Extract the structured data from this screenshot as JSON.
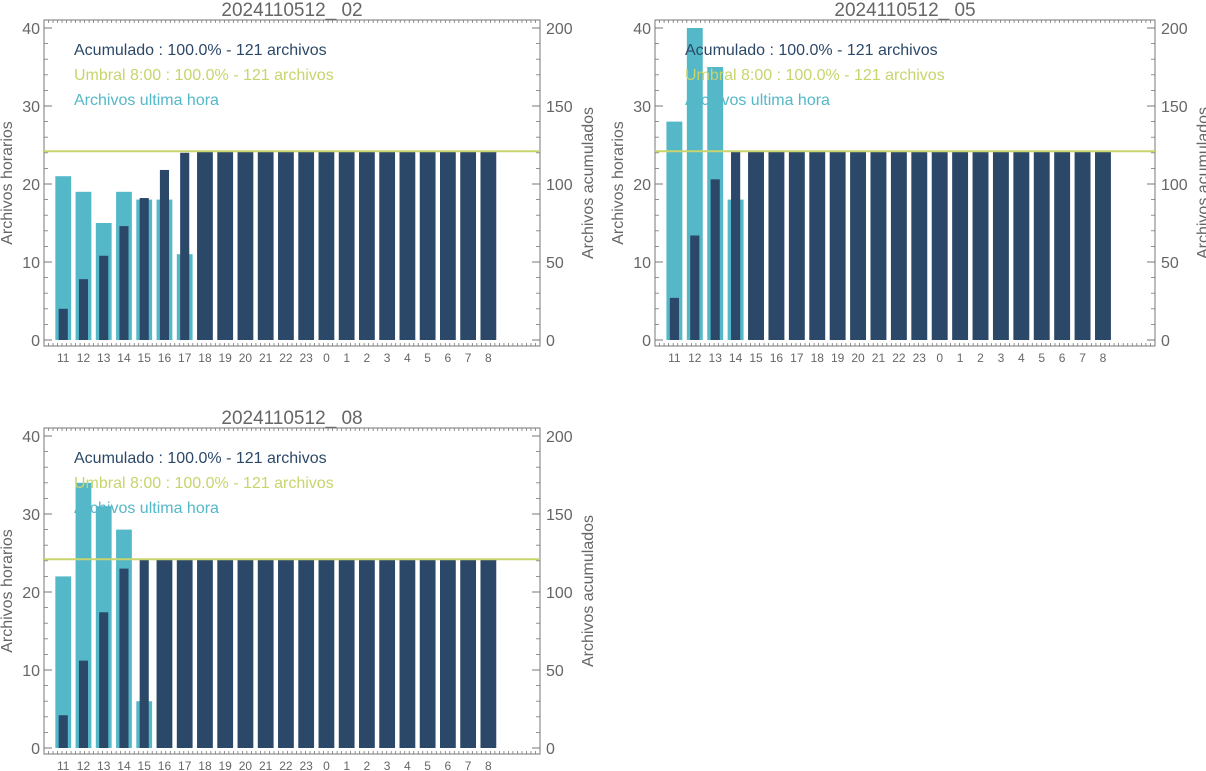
{
  "colors": {
    "hourly": "#54b8c8",
    "cumulative": "#2c4868",
    "threshold": "#c8d46c",
    "axis": "#777777",
    "text": "#666666"
  },
  "chart_data": [
    {
      "type": "bar",
      "title": "2024110512_ 02",
      "categories": [
        "11",
        "12",
        "13",
        "14",
        "15",
        "16",
        "17",
        "18",
        "19",
        "20",
        "21",
        "22",
        "23",
        "0",
        "1",
        "2",
        "3",
        "4",
        "5",
        "6",
        "7",
        "8"
      ],
      "ylabel": "Archivos horarios",
      "y2label": "Archivos acumulados",
      "ylim": [
        0,
        40
      ],
      "y2lim": [
        0,
        200
      ],
      "yticks": [
        "0",
        "10",
        "20",
        "30",
        "40"
      ],
      "y2ticks": [
        "0",
        "50",
        "100",
        "150",
        "200"
      ],
      "legend": [
        "Acumulado : 100.0% - 121 archivos",
        "Umbral 8:00 : 100.0% - 121 archivos",
        "Archivos ultima hora"
      ],
      "threshold": 121,
      "series": [
        {
          "name": "Archivos ultima hora",
          "axis": "left",
          "values": [
            21,
            19,
            15,
            19,
            18,
            18,
            11,
            null,
            null,
            null,
            null,
            null,
            null,
            null,
            null,
            null,
            null,
            null,
            null,
            null,
            null,
            null
          ]
        },
        {
          "name": "Acumulado",
          "axis": "right",
          "values": [
            20,
            39,
            54,
            73,
            91,
            109,
            120,
            121,
            121,
            121,
            121,
            121,
            121,
            121,
            121,
            121,
            121,
            121,
            121,
            121,
            121,
            121
          ]
        }
      ]
    },
    {
      "type": "bar",
      "title": "2024110512_ 05",
      "categories": [
        "11",
        "12",
        "13",
        "14",
        "15",
        "16",
        "17",
        "18",
        "19",
        "20",
        "21",
        "22",
        "23",
        "0",
        "1",
        "2",
        "3",
        "4",
        "5",
        "6",
        "7",
        "8"
      ],
      "ylabel": "Archivos horarios",
      "y2label": "Archivos acumulados",
      "ylim": [
        0,
        40
      ],
      "y2lim": [
        0,
        200
      ],
      "yticks": [
        "0",
        "10",
        "20",
        "30",
        "40"
      ],
      "y2ticks": [
        "0",
        "50",
        "100",
        "150",
        "200"
      ],
      "legend": [
        "Acumulado : 100.0% - 121 archivos",
        "Umbral 8:00 : 100.0% - 121 archivos",
        "Archivos ultima hora"
      ],
      "threshold": 121,
      "series": [
        {
          "name": "Archivos ultima hora",
          "axis": "left",
          "values": [
            28,
            40,
            35,
            18,
            null,
            null,
            null,
            null,
            null,
            null,
            null,
            null,
            null,
            null,
            null,
            null,
            null,
            null,
            null,
            null,
            null,
            null
          ]
        },
        {
          "name": "Acumulado",
          "axis": "right",
          "values": [
            27,
            67,
            103,
            121,
            121,
            121,
            121,
            121,
            121,
            121,
            121,
            121,
            121,
            121,
            121,
            121,
            121,
            121,
            121,
            121,
            121,
            121
          ]
        }
      ]
    },
    {
      "type": "bar",
      "title": "2024110512_ 08",
      "categories": [
        "11",
        "12",
        "13",
        "14",
        "15",
        "16",
        "17",
        "18",
        "19",
        "20",
        "21",
        "22",
        "23",
        "0",
        "1",
        "2",
        "3",
        "4",
        "5",
        "6",
        "7",
        "8"
      ],
      "ylabel": "Archivos horarios",
      "y2label": "Archivos acumulados",
      "ylim": [
        0,
        40
      ],
      "y2lim": [
        0,
        200
      ],
      "yticks": [
        "0",
        "10",
        "20",
        "30",
        "40"
      ],
      "y2ticks": [
        "0",
        "50",
        "100",
        "150",
        "200"
      ],
      "legend": [
        "Acumulado : 100.0% - 121 archivos",
        "Umbral 8:00 : 100.0% - 121 archivos",
        "Archivos ultima hora"
      ],
      "threshold": 121,
      "series": [
        {
          "name": "Archivos ultima hora",
          "axis": "left",
          "values": [
            22,
            34,
            31,
            28,
            6,
            null,
            null,
            null,
            null,
            null,
            null,
            null,
            null,
            null,
            null,
            null,
            null,
            null,
            null,
            null,
            null,
            null
          ]
        },
        {
          "name": "Acumulado",
          "axis": "right",
          "values": [
            21,
            56,
            87,
            115,
            121,
            121,
            121,
            121,
            121,
            121,
            121,
            121,
            121,
            121,
            121,
            121,
            121,
            121,
            121,
            121,
            121,
            121
          ]
        }
      ]
    }
  ]
}
